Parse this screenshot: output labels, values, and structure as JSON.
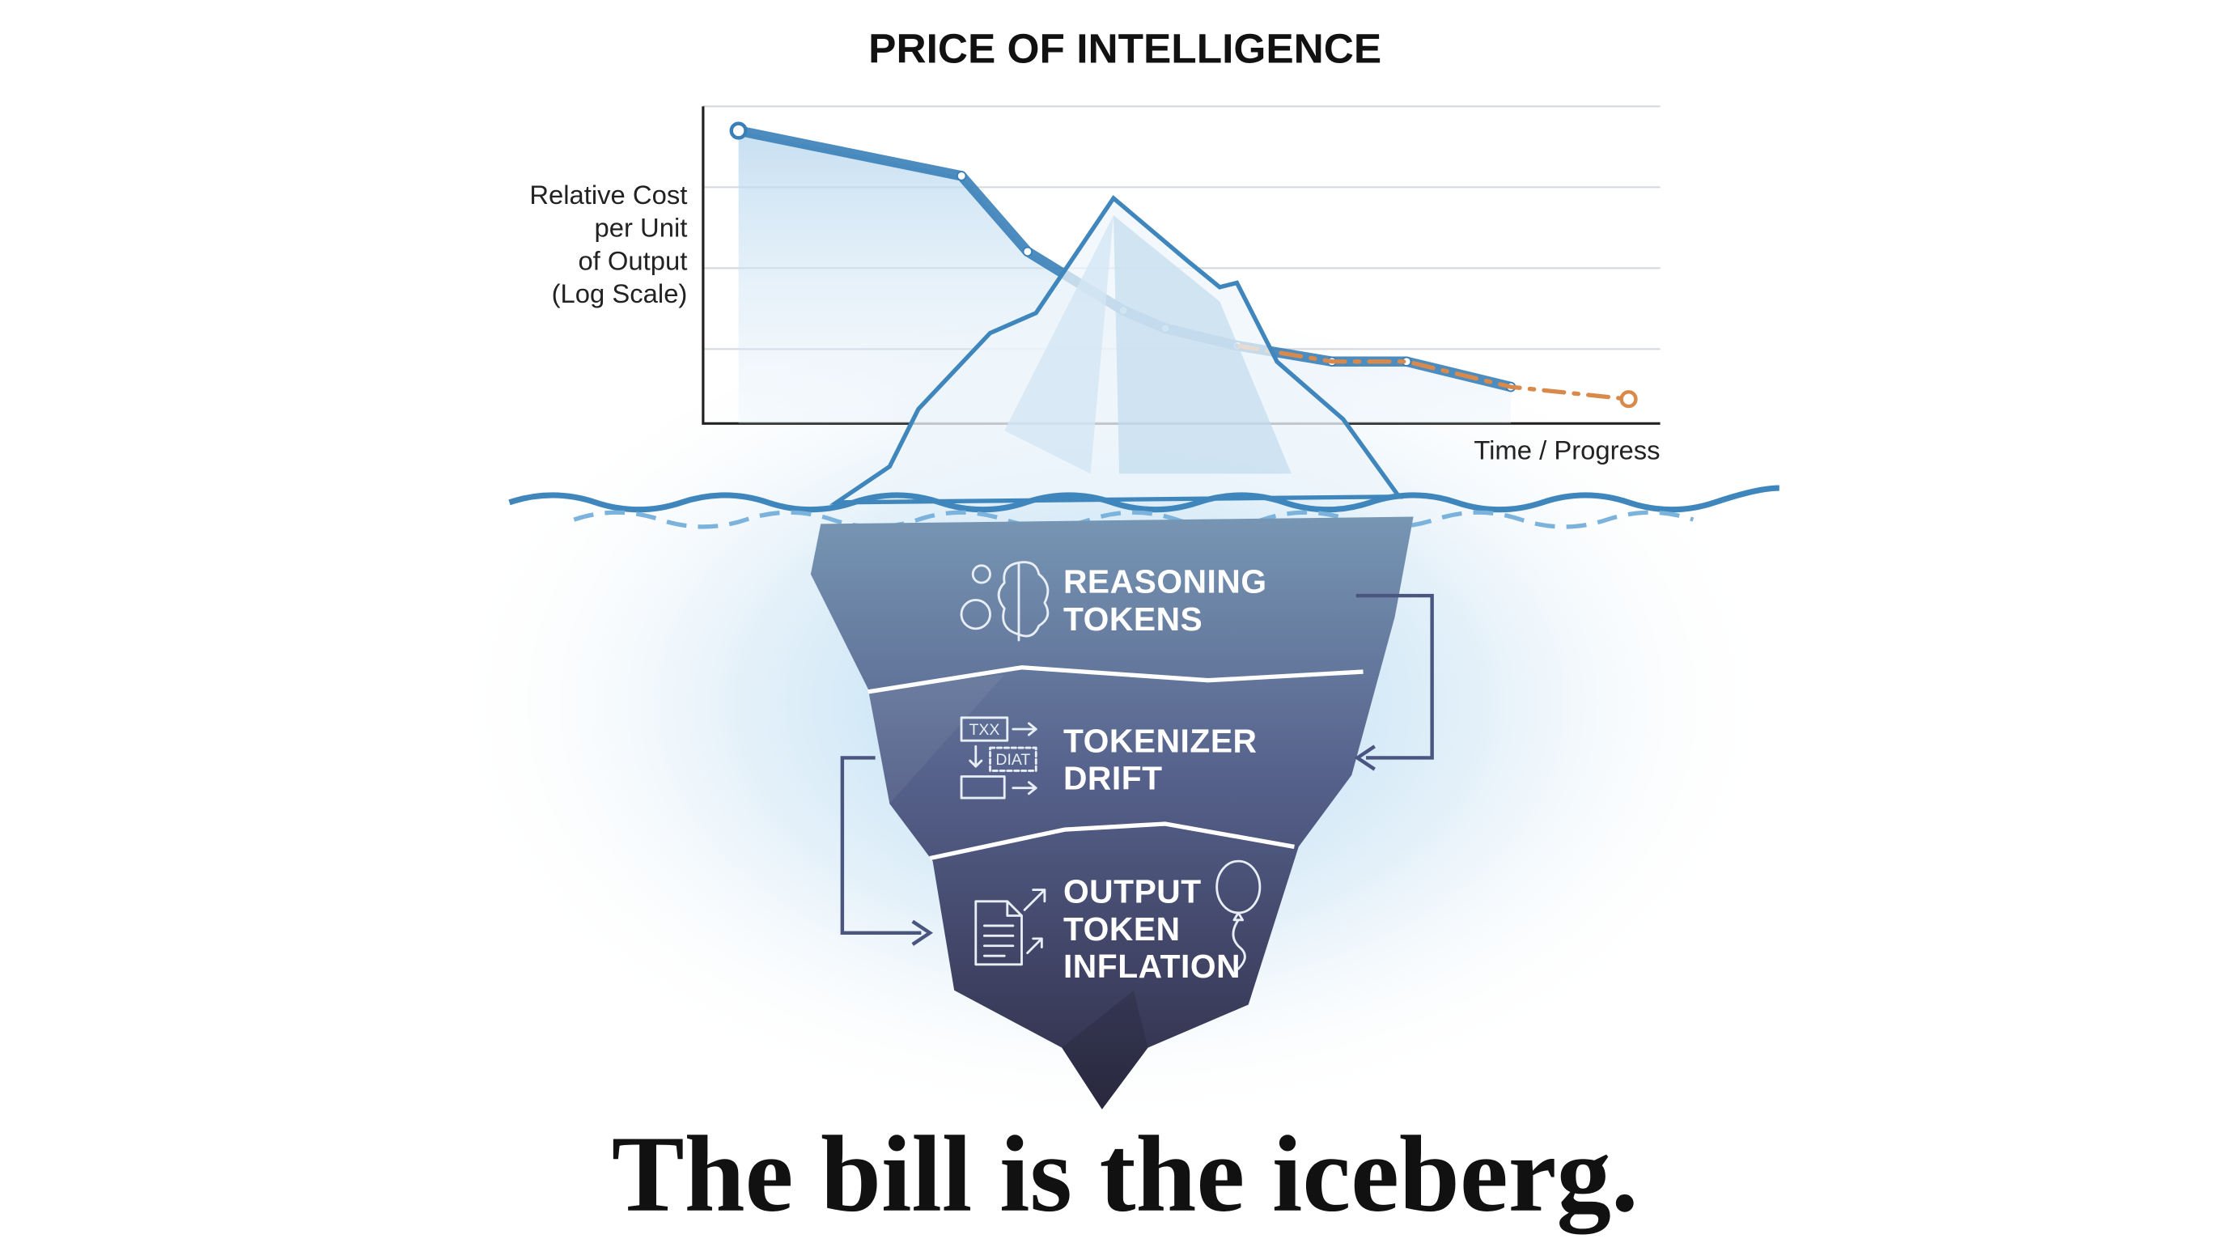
{
  "chart_data": {
    "type": "line",
    "title": "PRICE OF INTELLIGENCE",
    "ylabel": [
      "Relative Cost",
      "per Unit",
      "of Output",
      "(Log Scale)"
    ],
    "xlabel": "Time / Progress",
    "xlim": [
      0,
      100
    ],
    "ylim": [
      0.12,
      1000
    ],
    "log_y": true,
    "ygrid": [
      1,
      10,
      100,
      1000
    ],
    "grid": true,
    "series": [
      {
        "color": "#3a7fb8",
        "style": "solid",
        "area": true,
        "x": [
          3.7,
          27,
          33.9,
          43.9,
          48.3,
          55.8,
          65.7,
          73.5,
          84.4
        ],
        "values": [
          500,
          138,
          16,
          3,
          1.8,
          1.1,
          0.7,
          0.7,
          0.34
        ]
      },
      {
        "color": "#d9894a",
        "style": "dashed",
        "area": false,
        "x": [
          55.8,
          65.7,
          73.5,
          84.4,
          96.7
        ],
        "values": [
          1.1,
          0.7,
          0.7,
          0.34,
          0.24
        ]
      }
    ]
  },
  "layers": [
    {
      "label_lines": [
        "REASONING",
        "TOKENS"
      ]
    },
    {
      "label_lines": [
        "TOKENIZER",
        "DRIFT"
      ]
    },
    {
      "label_lines": [
        "OUTPUT",
        "TOKEN",
        "INFLATION"
      ]
    }
  ],
  "icon_texts": {
    "tx": "TXX",
    "dt": "DIAT"
  },
  "headline": "The bill is the iceberg."
}
